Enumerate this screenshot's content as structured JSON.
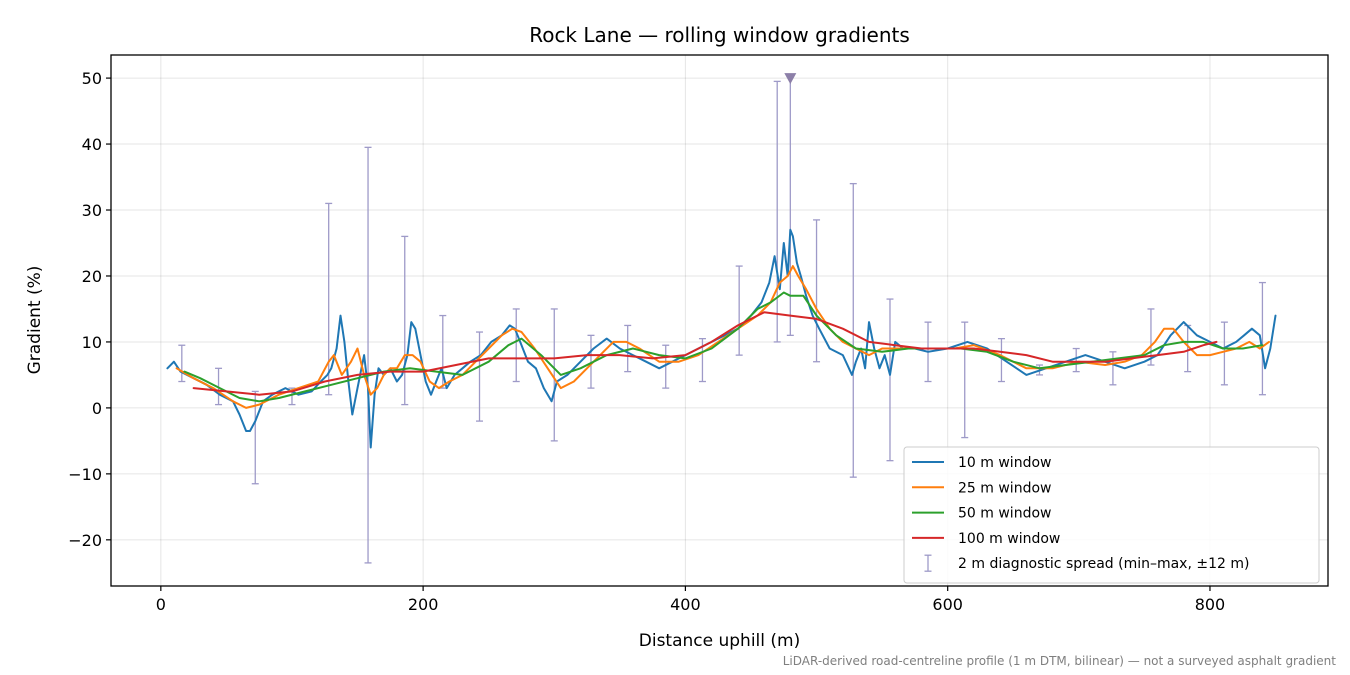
{
  "chart_data": {
    "type": "line",
    "title": "Rock Lane — rolling window gradients",
    "xlabel": "Distance uphill (m)",
    "ylabel": "Gradient (%)",
    "xlim": [
      -38,
      890
    ],
    "ylim": [
      -27,
      53.5
    ],
    "xticks": [
      0,
      200,
      400,
      600,
      800
    ],
    "xtick_labels": [
      "0",
      "200",
      "400",
      "600",
      "800"
    ],
    "yticks": [
      -20,
      -10,
      0,
      10,
      20,
      30,
      40,
      50
    ],
    "ytick_labels": [
      "−20",
      "−10",
      "0",
      "10",
      "20",
      "30",
      "40",
      "50"
    ],
    "grid": true,
    "legend_position": "lower right",
    "footnote": "LiDAR-derived road-centreline profile (1 m DTM, bilinear) — not a surveyed asphalt gradient",
    "colors": {
      "w10": "#1f77b4",
      "w25": "#ff7f0e",
      "w50": "#2ca02c",
      "w100": "#d62728",
      "spread": "#9e9ac8",
      "peak_marker": "#8c7fa8"
    },
    "series": [
      {
        "name": "10 m window",
        "color": "#1f77b4",
        "x": [
          5,
          10,
          15,
          25,
          35,
          45,
          55,
          60,
          65,
          68,
          72,
          78,
          85,
          95,
          105,
          115,
          122,
          127,
          130,
          134,
          137,
          140,
          143,
          146,
          150,
          155,
          158,
          160,
          163,
          166,
          170,
          175,
          180,
          184,
          188,
          191,
          194,
          198,
          202,
          206,
          210,
          214,
          218,
          224,
          230,
          236,
          244,
          252,
          260,
          266,
          270,
          274,
          280,
          286,
          292,
          298,
          302,
          310,
          320,
          330,
          340,
          350,
          360,
          370,
          380,
          390,
          400,
          410,
          420,
          430,
          440,
          450,
          458,
          464,
          468,
          472,
          475,
          478,
          480,
          482,
          485,
          488,
          492,
          497,
          502,
          510,
          520,
          527,
          530,
          534,
          537,
          540,
          544,
          548,
          552,
          556,
          560,
          566,
          575,
          585,
          600,
          615,
          630,
          645,
          660,
          675,
          690,
          705,
          720,
          735,
          750,
          760,
          770,
          780,
          790,
          800,
          810,
          820,
          826,
          832,
          838,
          842,
          846,
          850
        ],
        "y": [
          6,
          7,
          5.5,
          4.5,
          3.5,
          2,
          1,
          -1,
          -3.5,
          -3.5,
          -2,
          1,
          2,
          3,
          2,
          2.5,
          4,
          5,
          6,
          9,
          14,
          10,
          4,
          -1,
          3,
          8,
          3,
          -6,
          2,
          6,
          5,
          6,
          4,
          5,
          8,
          13,
          12,
          8,
          4,
          2,
          4,
          6,
          3,
          5,
          6,
          7,
          8,
          10,
          11,
          12.5,
          12,
          10,
          7,
          6,
          3,
          1,
          4,
          5,
          7,
          9,
          10.5,
          9,
          8,
          7,
          6,
          7,
          8,
          9,
          10,
          11,
          12,
          14,
          16,
          19,
          23,
          18,
          25,
          20,
          27,
          26,
          22,
          20,
          17,
          14,
          12,
          9,
          8,
          5,
          7,
          9,
          6,
          13,
          9,
          6,
          8,
          5,
          10,
          9,
          9,
          8.5,
          9,
          10,
          9,
          7,
          5,
          6,
          7,
          8,
          7,
          6,
          7,
          8,
          11,
          13,
          11,
          10,
          9,
          10,
          11,
          12,
          11,
          6,
          9,
          14
        ]
      },
      {
        "name": "25 m window",
        "color": "#ff7f0e",
        "x": [
          12,
          25,
          40,
          55,
          65,
          75,
          90,
          105,
          120,
          128,
          132,
          138,
          145,
          150,
          155,
          160,
          165,
          170,
          175,
          180,
          186,
          192,
          198,
          205,
          212,
          220,
          230,
          240,
          250,
          260,
          268,
          275,
          285,
          295,
          305,
          315,
          325,
          335,
          345,
          355,
          365,
          380,
          395,
          410,
          425,
          440,
          455,
          465,
          472,
          478,
          482,
          486,
          492,
          500,
          510,
          520,
          530,
          540,
          550,
          560,
          575,
          590,
          605,
          620,
          640,
          660,
          680,
          700,
          720,
          735,
          748,
          758,
          765,
          772,
          780,
          790,
          800,
          810,
          820,
          830,
          838,
          845
        ],
        "y": [
          6,
          4.5,
          3,
          1,
          0,
          0.5,
          2,
          3,
          4,
          7,
          8,
          5,
          7,
          9,
          5,
          2,
          3,
          5,
          6,
          6,
          8,
          8,
          7,
          4,
          3,
          4,
          5,
          7,
          9,
          11,
          12,
          11.5,
          9,
          6,
          3,
          4,
          6,
          8,
          10,
          10,
          9,
          7,
          7,
          8,
          10,
          12,
          14,
          16,
          19,
          20,
          21.5,
          20,
          18,
          15,
          12,
          10,
          9,
          8,
          9,
          9,
          9,
          9,
          9,
          9.5,
          8,
          6,
          6,
          7,
          6.5,
          7,
          8,
          10,
          12,
          12,
          10,
          8,
          8,
          8.5,
          9,
          10,
          9,
          10
        ]
      },
      {
        "name": "50 m window",
        "color": "#2ca02c",
        "x": [
          18,
          30,
          45,
          60,
          75,
          90,
          110,
          130,
          150,
          170,
          190,
          210,
          230,
          250,
          265,
          275,
          290,
          305,
          320,
          340,
          360,
          380,
          400,
          420,
          440,
          455,
          465,
          475,
          480,
          490,
          500,
          515,
          530,
          550,
          570,
          590,
          610,
          630,
          650,
          670,
          690,
          710,
          730,
          750,
          765,
          780,
          795,
          810,
          825,
          840
        ],
        "y": [
          5.5,
          4.5,
          3,
          1.5,
          1,
          1.5,
          2.5,
          3.5,
          4.5,
          5.5,
          6,
          5.5,
          5,
          7,
          9.5,
          10.5,
          8,
          5,
          6,
          8,
          9,
          8,
          7.5,
          9,
          12,
          15,
          16,
          17.5,
          17,
          17,
          14,
          11,
          9,
          8.5,
          9,
          9,
          9,
          8.5,
          7,
          6,
          6.5,
          7,
          7.5,
          8,
          9.5,
          10,
          10,
          9,
          9,
          9.5
        ]
      },
      {
        "name": "100 m window",
        "color": "#d62728",
        "x": [
          25,
          50,
          75,
          100,
          125,
          150,
          175,
          200,
          225,
          250,
          275,
          300,
          325,
          350,
          375,
          400,
          420,
          440,
          460,
          480,
          500,
          520,
          540,
          560,
          580,
          600,
          620,
          640,
          660,
          680,
          700,
          720,
          740,
          760,
          780,
          795,
          805
        ],
        "y": [
          3,
          2.5,
          2,
          2.5,
          4,
          5,
          5.5,
          5.5,
          6.5,
          7.5,
          7.5,
          7.5,
          8,
          8,
          7.5,
          8,
          10,
          12.5,
          14.5,
          14,
          13.5,
          12,
          10,
          9.5,
          9,
          9,
          9,
          8.5,
          8,
          7,
          7,
          7,
          7.5,
          8,
          8.5,
          9.5,
          10
        ]
      }
    ],
    "spread": {
      "name": "2 m diagnostic spread (min–max, ±12 m)",
      "color": "#9e9ac8",
      "x": [
        16,
        44,
        72,
        100,
        128,
        158,
        186,
        215,
        243,
        271,
        300,
        328,
        356,
        385,
        413,
        441,
        470,
        480,
        500,
        528,
        556,
        585,
        613,
        641,
        670,
        698,
        726,
        755,
        783,
        811,
        840
      ],
      "low": [
        4,
        0.5,
        -11.5,
        0.5,
        2,
        -23.5,
        0.5,
        3,
        -2,
        4,
        -5,
        3,
        5.5,
        3,
        4,
        8,
        10,
        11,
        7,
        -10.5,
        -8,
        4,
        -4.5,
        4,
        5,
        5.5,
        3.5,
        6.5,
        5.5,
        3.5,
        2
      ],
      "high": [
        9.5,
        6,
        2.5,
        3,
        31,
        39.5,
        26,
        14,
        11.5,
        15,
        15,
        11,
        12.5,
        9.5,
        10.5,
        21.5,
        49.5,
        50.5,
        28.5,
        34,
        16.5,
        13,
        13,
        10.5,
        6.5,
        9,
        8.5,
        15,
        12.5,
        13,
        19
      ]
    },
    "peak_marker": {
      "x": 480,
      "y": 50
    }
  }
}
